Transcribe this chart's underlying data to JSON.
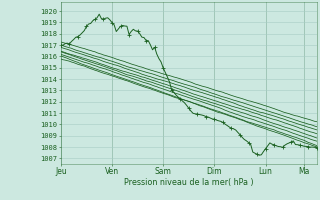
{
  "bg_color": "#cce8e0",
  "grid_color": "#a8ccc4",
  "line_color": "#1a6020",
  "marker_color": "#1a6020",
  "ylabel_values": [
    1007,
    1008,
    1009,
    1010,
    1011,
    1012,
    1013,
    1014,
    1015,
    1016,
    1017,
    1018,
    1019,
    1020
  ],
  "ymin": 1006.5,
  "ymax": 1020.8,
  "xlabel": "Pression niveau de la mer( hPa )",
  "xtick_labels": [
    "Jeu",
    "Ven",
    "Sam",
    "Dim",
    "Lun",
    "Ma"
  ],
  "xtick_pos": [
    0,
    24,
    48,
    72,
    96,
    114
  ],
  "total_hours": 120
}
